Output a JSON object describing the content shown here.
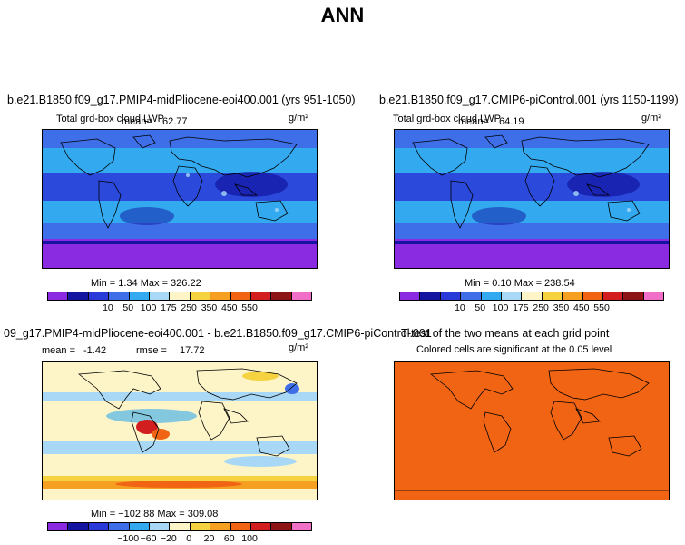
{
  "title": "ANN",
  "units": "g/m²",
  "panels": [
    {
      "title": "b.e21.B1850.f09_g17.PMIP4-midPliocene-eoi400.001 (yrs 951-1050)",
      "variable": "Total grd-box cloud LWP",
      "mean_label": "mean=",
      "mean": "62.77",
      "minmax": "Min =   1.34 Max = 326.22"
    },
    {
      "title": "b.e21.B1850.f09_g17.CMIP6-piControl.001 (yrs 1150-1199)",
      "variable": "Total grd-box cloud LWP",
      "mean_label": "mean=",
      "mean": "64.19",
      "minmax": "Min =   0.10 Max = 238.54"
    },
    {
      "title": "09_g17.PMIP4-midPliocene-eoi400.001 - b.e21.B1850.f09_g17.CMIP6-piControl.001",
      "mean_label": "mean =",
      "mean": "-1.42",
      "rmse_label": "rmse =",
      "rmse": "17.72",
      "minmax": "Min = −102.88 Max = 309.08"
    },
    {
      "title": "T-test of the two means at each grid point",
      "subtitle": "Colored cells are significant at the 0.05 level"
    }
  ],
  "colorbar_abs": {
    "colors": [
      "#8a2be2",
      "#1414a0",
      "#2a3ad8",
      "#3f6fe8",
      "#33aaf0",
      "#a8d8f5",
      "#fdf5c8",
      "#f5d240",
      "#f5a020",
      "#f06414",
      "#d21e1e",
      "#8c1414",
      "#f070c8"
    ],
    "ticks": [
      "10",
      "50",
      "100",
      "175",
      "250",
      "350",
      "450",
      "550"
    ]
  },
  "colorbar_diff": {
    "colors": [
      "#8a2be2",
      "#1414a0",
      "#2a3ad8",
      "#3f6fe8",
      "#33aaf0",
      "#a8d8f5",
      "#fdf5c8",
      "#f5d240",
      "#f5a020",
      "#f06414",
      "#d21e1e",
      "#8c1414",
      "#f070c8"
    ],
    "ticks": [
      "−100",
      "−60",
      "−20",
      "0",
      "20",
      "60",
      "100"
    ]
  }
}
